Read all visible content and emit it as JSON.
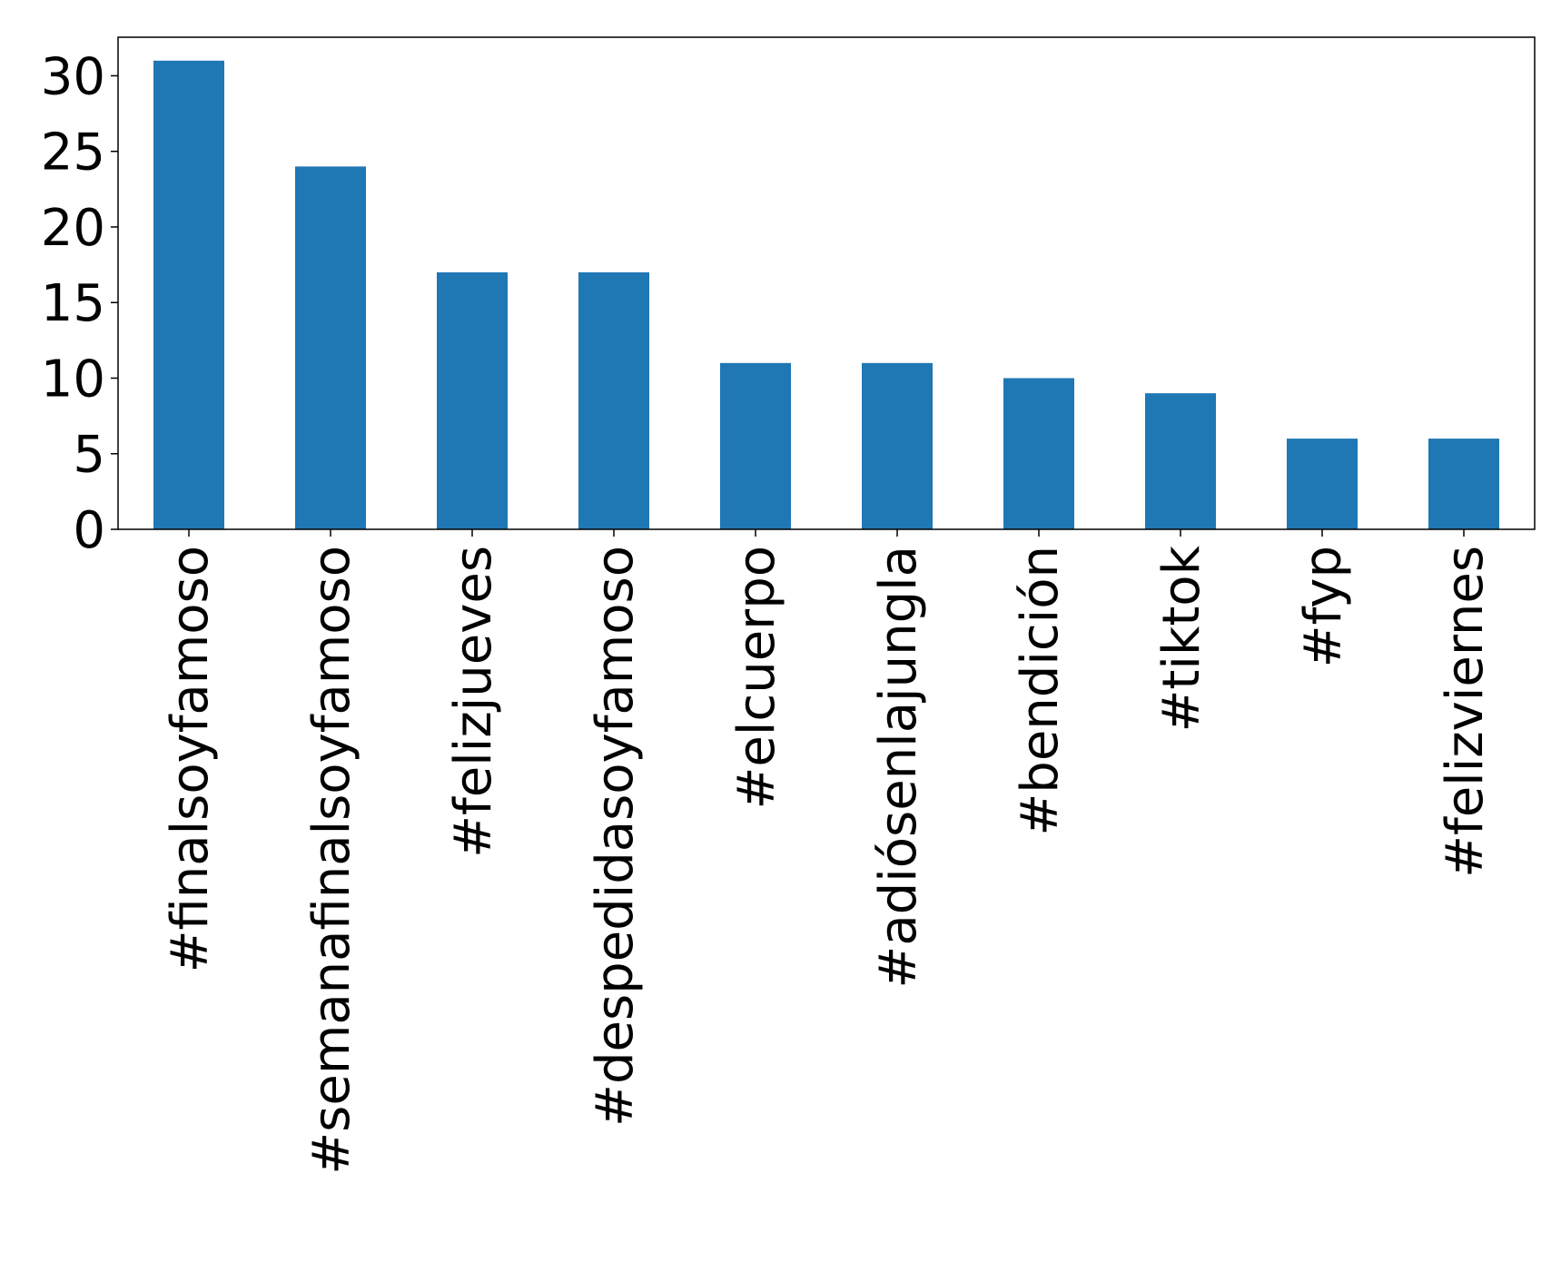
{
  "chart_data": {
    "type": "bar",
    "title": "",
    "xlabel": "",
    "ylabel": "",
    "categories": [
      "#finalsoyfamoso",
      "#semanafinalsoyfamoso",
      "#felizjueves",
      "#despedidasoyfamoso",
      "#elcuerpo",
      "#adiósenlajungla",
      "#bendición",
      "#tiktok",
      "#fyp",
      "#felizviernes"
    ],
    "values": [
      31,
      24,
      17,
      17,
      11,
      11,
      10,
      9,
      6,
      6
    ],
    "ylim": [
      0,
      32.55
    ],
    "yticks": [
      0,
      5,
      10,
      15,
      20,
      25,
      30
    ],
    "grid": false,
    "legend": "none",
    "bar_color": "#1f77b4",
    "axis_color": "#000000"
  }
}
